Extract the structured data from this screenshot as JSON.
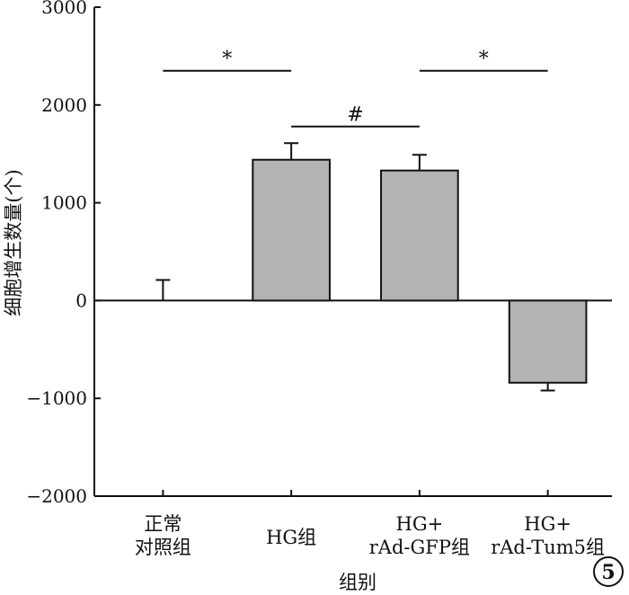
{
  "chart_data": {
    "type": "bar",
    "title": "",
    "xlabel": "组别",
    "ylabel": "细胞增生数量(个)",
    "ylim": [
      -2000,
      3000
    ],
    "yticks": [
      3000,
      2000,
      1000,
      0,
      -1000,
      -2000
    ],
    "ytick_labels": [
      "3000",
      "2000",
      "1000",
      "0",
      "−1000",
      "−2000"
    ],
    "categories": [
      [
        "正常",
        "对照组"
      ],
      [
        "HG组"
      ],
      [
        "HG+",
        "rAd-GFP组"
      ],
      [
        "HG+",
        "rAd-Tum5组"
      ]
    ],
    "values": [
      0,
      1440,
      1330,
      -840
    ],
    "errors": [
      210,
      170,
      160,
      80
    ],
    "bar_color": "#b3b3b3",
    "grid": false,
    "legend": "none",
    "significance": [
      {
        "from": 0,
        "to": 1,
        "label": "*",
        "y": 2350
      },
      {
        "from": 1,
        "to": 2,
        "label": "#",
        "y": 1780
      },
      {
        "from": 2,
        "to": 3,
        "label": "*",
        "y": 2350
      }
    ],
    "badge": "5"
  }
}
